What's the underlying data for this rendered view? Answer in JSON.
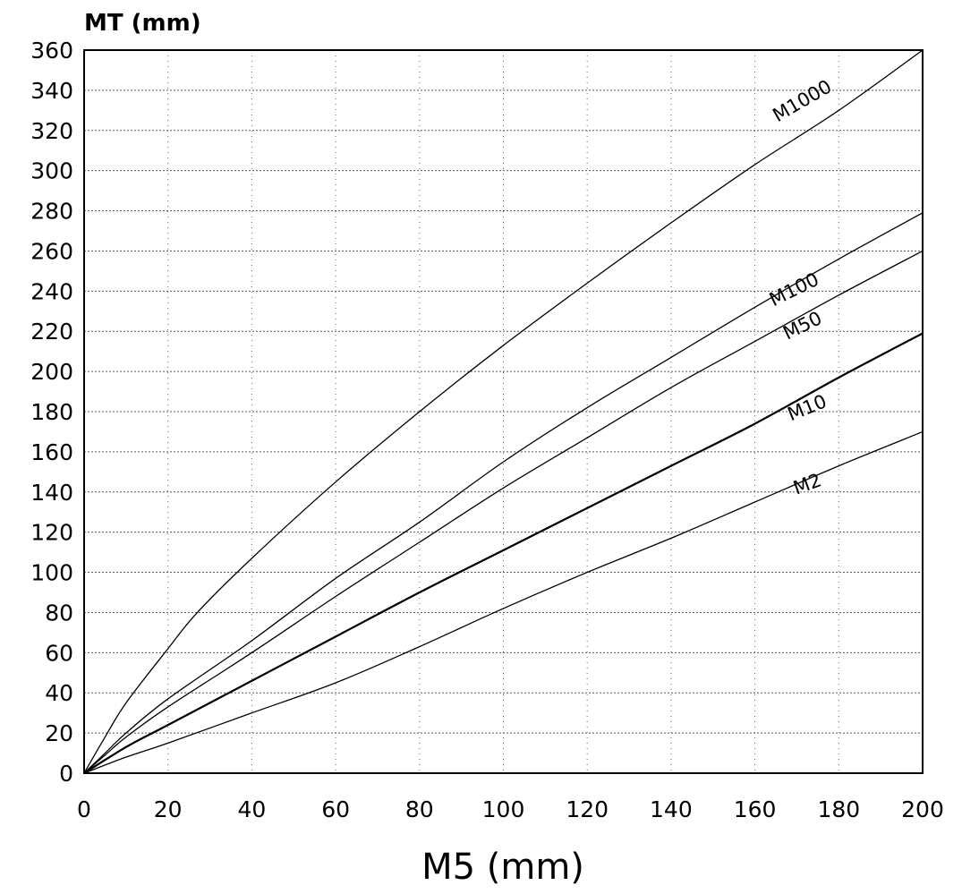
{
  "chart_data": {
    "type": "line",
    "title": "",
    "ylabel": "MT (mm)",
    "xlabel": "M5 (mm)",
    "xlim": [
      0,
      200
    ],
    "ylim": [
      0,
      360
    ],
    "xticks": [
      0,
      20,
      40,
      60,
      80,
      100,
      120,
      140,
      160,
      180,
      200
    ],
    "yticks": [
      0,
      20,
      40,
      60,
      80,
      100,
      120,
      140,
      160,
      180,
      200,
      220,
      240,
      260,
      280,
      300,
      320,
      340,
      360
    ],
    "grid": true,
    "series": [
      {
        "name": "M1000",
        "x": [
          0,
          5,
          10,
          20,
          27,
          40,
          60,
          80,
          100,
          120,
          140,
          160,
          180,
          200
        ],
        "y": [
          0,
          18,
          35,
          62,
          80,
          107,
          145,
          180,
          213,
          244,
          274,
          303,
          330,
          360
        ]
      },
      {
        "name": "M100",
        "x": [
          0,
          5,
          10,
          20,
          40,
          60,
          80,
          100,
          120,
          140,
          160,
          180,
          200
        ],
        "y": [
          0,
          10,
          20,
          37,
          66,
          97,
          125,
          155,
          182,
          207,
          232,
          256,
          279
        ]
      },
      {
        "name": "M50",
        "x": [
          0,
          5,
          10,
          20,
          40,
          60,
          80,
          100,
          120,
          140,
          160,
          180,
          200
        ],
        "y": [
          0,
          9,
          18,
          33,
          60,
          88,
          115,
          142,
          167,
          192,
          215,
          238,
          260
        ]
      },
      {
        "name": "M10",
        "x": [
          0,
          10,
          20,
          40,
          60,
          80,
          100,
          120,
          140,
          160,
          180,
          200
        ],
        "y": [
          0,
          13,
          24,
          46,
          68,
          90,
          111,
          132,
          153,
          174,
          197,
          219
        ]
      },
      {
        "name": "M2",
        "x": [
          0,
          10,
          20,
          40,
          60,
          80,
          100,
          120,
          140,
          160,
          180,
          200
        ],
        "y": [
          0,
          8,
          15,
          30,
          45,
          63,
          82,
          100,
          117,
          135,
          153,
          170
        ]
      }
    ],
    "series_labels": [
      {
        "name": "M1000",
        "x": 172,
        "y": 332,
        "angle": -30
      },
      {
        "name": "M100",
        "x": 170,
        "y": 238,
        "angle": -26
      },
      {
        "name": "M50",
        "x": 172,
        "y": 220,
        "angle": -26
      },
      {
        "name": "M10",
        "x": 173,
        "y": 179,
        "angle": -22
      },
      {
        "name": "M2",
        "x": 173,
        "y": 141,
        "angle": -20
      }
    ]
  }
}
